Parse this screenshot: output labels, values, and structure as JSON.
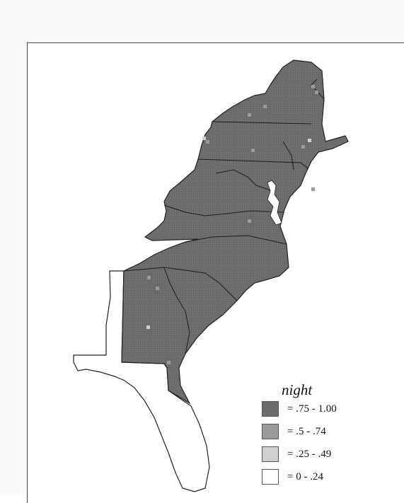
{
  "legend": {
    "title": "night",
    "classes": [
      {
        "label": "=  .75 - 1.00",
        "color": "#6b6b6b"
      },
      {
        "label": "=  .5 - .74",
        "color": "#9a9a9a"
      },
      {
        "label": "=  .25 - .49",
        "color": "#cfcfcf"
      },
      {
        "label": "=  0 - .24",
        "color": "#ffffff"
      }
    ]
  }
}
